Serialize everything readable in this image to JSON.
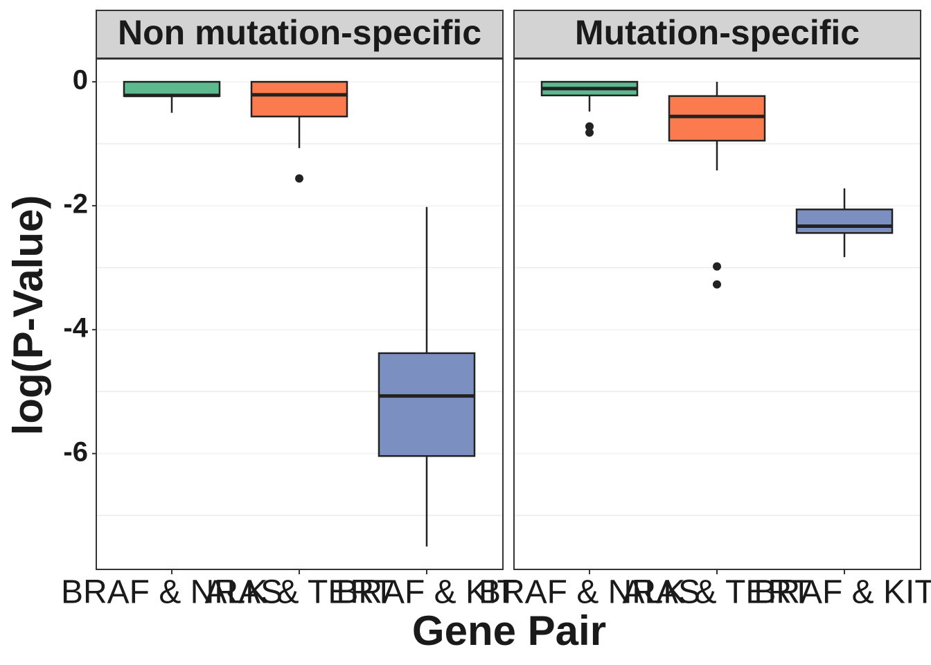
{
  "chart_data": {
    "type": "box",
    "ylabel": "log(P-Value)",
    "xlabel": "Gene Pair",
    "ylim": [
      -7.87,
      0.37
    ],
    "yticks": [
      -6,
      -4,
      -2,
      0
    ],
    "yminor": [
      -7,
      -5,
      -3,
      -1
    ],
    "grid": true,
    "categories": [
      "BRAF & NRAS",
      "ALK & TERT",
      "BRAF & KIT"
    ],
    "colors": [
      "#5cba8e",
      "#fb7b4f",
      "#7b8fc1"
    ],
    "facets": [
      {
        "title": "Non mutation-specific",
        "boxes": [
          {
            "min": -0.5,
            "q1": -0.23,
            "median": -0.22,
            "q3": 0,
            "max": 0,
            "outliers": []
          },
          {
            "min": -1.07,
            "q1": -0.56,
            "median": -0.21,
            "q3": 0,
            "max": 0,
            "outliers": [
              -1.56
            ]
          },
          {
            "min": -7.5,
            "q1": -6.04,
            "median": -5.07,
            "q3": -4.38,
            "max": -2.02,
            "outliers": []
          }
        ]
      },
      {
        "title": "Mutation-specific",
        "boxes": [
          {
            "min": -0.48,
            "q1": -0.22,
            "median": -0.11,
            "q3": 0,
            "max": 0,
            "outliers": [
              -0.72,
              -0.82
            ]
          },
          {
            "min": -1.43,
            "q1": -0.95,
            "median": -0.56,
            "q3": -0.23,
            "max": 0,
            "outliers": [
              -2.98,
              -3.27
            ]
          },
          {
            "min": -2.83,
            "q1": -2.44,
            "median": -2.33,
            "q3": -2.06,
            "max": -1.72,
            "outliers": []
          }
        ]
      }
    ]
  }
}
